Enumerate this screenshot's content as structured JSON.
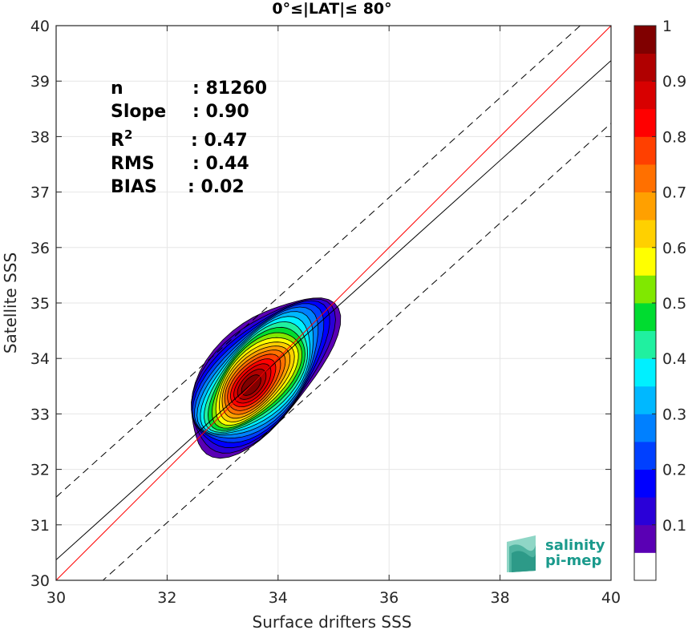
{
  "chart_data": {
    "type": "heatmap",
    "title": "0°≤|LAT|≤ 80°",
    "xlabel": "Surface drifters SSS",
    "ylabel": "Satellite SSS",
    "xlim": [
      30,
      40
    ],
    "ylim": [
      30,
      40
    ],
    "xticks": [
      "30",
      "32",
      "34",
      "36",
      "38",
      "40"
    ],
    "yticks": [
      "30",
      "31",
      "32",
      "33",
      "34",
      "35",
      "36",
      "37",
      "38",
      "39",
      "40"
    ],
    "grid": true,
    "stats": [
      {
        "label": "n",
        "value": ": 81260"
      },
      {
        "label": "Slope",
        "value": ": 0.90"
      },
      {
        "label": "R",
        "sup": "2",
        "value": ": 0.47"
      },
      {
        "label": "RMS",
        "value": ": 0.44"
      },
      {
        "label": "BIAS",
        "value": ": 0.02"
      }
    ],
    "lines": {
      "identity": {
        "slope": 1,
        "intercept": 0,
        "color": "#ff0000"
      },
      "fit": {
        "slope": 0.9,
        "intercept": 3.37,
        "color": "#000000"
      },
      "upper_bound": {
        "slope": 0.9,
        "intercept": 4.5,
        "style": "dashed"
      },
      "lower_bound": {
        "slope": 0.9,
        "intercept": 2.24,
        "style": "dashed"
      }
    },
    "density_peak": {
      "x": 33.5,
      "y": 33.5
    },
    "contour_levels": [
      0.05,
      0.1,
      0.2,
      0.3,
      0.4,
      0.5,
      0.6,
      0.7,
      0.8,
      0.9
    ],
    "colorbar": {
      "ticks": [
        "0.1",
        "0.2",
        "0.3",
        "0.4",
        "0.5",
        "0.6",
        "0.7",
        "0.8",
        "0.9",
        "1"
      ],
      "range": [
        0,
        1
      ],
      "colors": [
        "#ffffff",
        "#5a00b4",
        "#2a00d8",
        "#0000ff",
        "#0040ff",
        "#0080ff",
        "#00b8ff",
        "#00f0ff",
        "#20f0a0",
        "#00dc30",
        "#80e800",
        "#ffff00",
        "#ffd000",
        "#ffa000",
        "#ff7000",
        "#ff4000",
        "#ff0000",
        "#d80000",
        "#b00000",
        "#800000"
      ]
    }
  },
  "logo": {
    "line1": "salinity",
    "line2": "pi-mep"
  }
}
